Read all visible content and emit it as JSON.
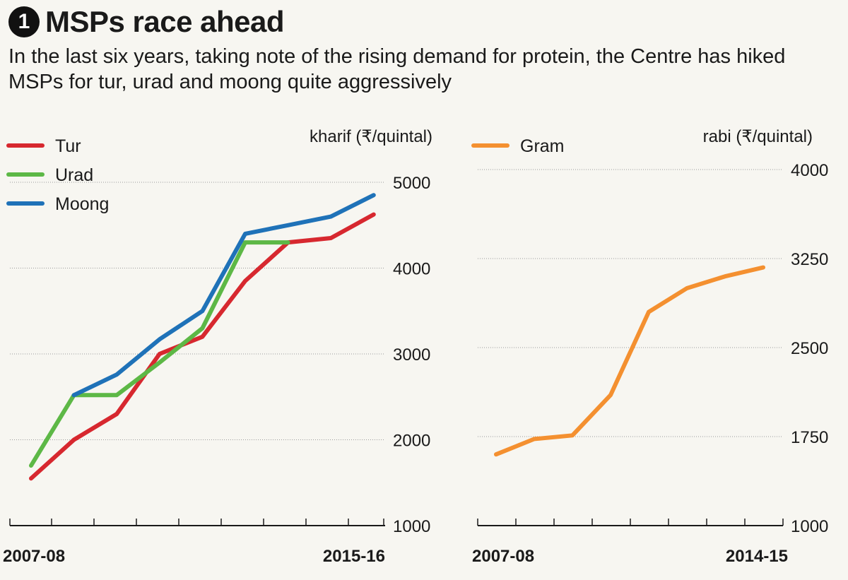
{
  "header": {
    "number": "1",
    "title": "MSPs race ahead",
    "subtitle": "In the last six years, taking note of the rising demand for protein, the Centre has hiked MSPs for tur, urad and moong quite aggressively"
  },
  "colors": {
    "tur": "#d7282f",
    "urad": "#5db846",
    "moong": "#1f72b8",
    "gram": "#f49030",
    "grid": "#9a9a9a"
  },
  "chart_data": [
    {
      "type": "line",
      "unit_label": "kharif (₹/quintal)",
      "x_first_label": "2007-08",
      "x_last_label": "2015-16",
      "x_count": 9,
      "ylim": [
        1000,
        5000
      ],
      "yticks": [
        1000,
        2000,
        3000,
        4000,
        5000
      ],
      "grid": true,
      "legend_position": "top-left",
      "series": [
        {
          "name": "Tur",
          "color_key": "tur",
          "x": [
            0,
            1,
            2,
            3,
            4,
            5,
            6,
            7,
            8
          ],
          "values": [
            1550,
            2000,
            2300,
            3000,
            3200,
            3850,
            4300,
            4350,
            4625
          ]
        },
        {
          "name": "Urad",
          "color_key": "urad",
          "x": [
            0,
            1,
            2,
            3,
            4,
            5,
            6
          ],
          "values": [
            1700,
            2520,
            2520,
            2900,
            3300,
            4300,
            4300
          ]
        },
        {
          "name": "Moong",
          "color_key": "moong",
          "x": [
            1,
            2,
            3,
            4,
            5,
            6,
            7,
            8
          ],
          "values": [
            2520,
            2760,
            3170,
            3500,
            4400,
            4500,
            4600,
            4850
          ]
        }
      ]
    },
    {
      "type": "line",
      "unit_label": "rabi (₹/quintal)",
      "x_first_label": "2007-08",
      "x_last_label": "2014-15",
      "x_count": 8,
      "ylim": [
        1000,
        4000
      ],
      "yticks": [
        1000,
        1750,
        2500,
        3250,
        4000
      ],
      "grid": true,
      "legend_position": "top-left",
      "series": [
        {
          "name": "Gram",
          "color_key": "gram",
          "x": [
            0,
            1,
            2,
            3,
            4,
            5,
            6,
            7
          ],
          "values": [
            1600,
            1730,
            1760,
            2100,
            2800,
            3000,
            3100,
            3175
          ]
        }
      ]
    }
  ]
}
